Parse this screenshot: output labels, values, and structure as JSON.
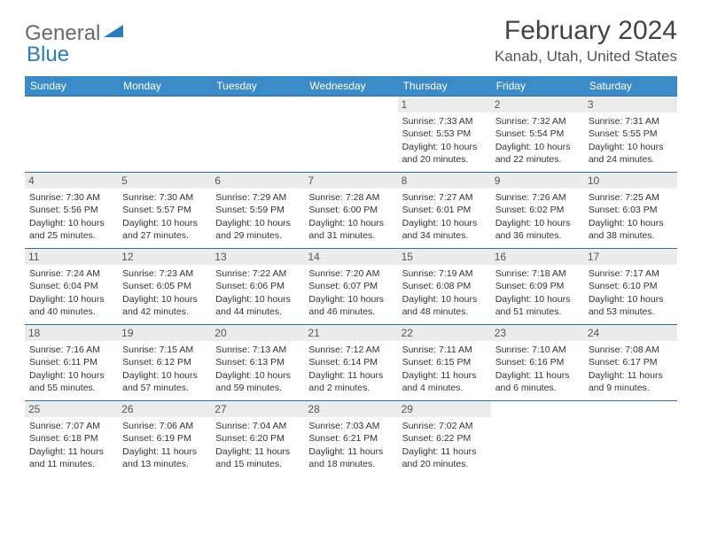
{
  "logo": {
    "general": "General",
    "blue": "Blue"
  },
  "title": "February 2024",
  "location": "Kanab, Utah, United States",
  "colors": {
    "header_bg": "#3b8bc8",
    "header_text": "#ffffff",
    "day_bg": "#ececec",
    "border": "#2f6fa3",
    "logo_gray": "#6a6a6a",
    "logo_blue": "#2b7bbf"
  },
  "weekdays": [
    "Sunday",
    "Monday",
    "Tuesday",
    "Wednesday",
    "Thursday",
    "Friday",
    "Saturday"
  ],
  "layout": {
    "columns": 7,
    "rows": 5,
    "first_day_index": 4,
    "days_in_month": 29
  },
  "days": {
    "1": {
      "sunrise": "7:33 AM",
      "sunset": "5:53 PM",
      "daylight": "10 hours and 20 minutes."
    },
    "2": {
      "sunrise": "7:32 AM",
      "sunset": "5:54 PM",
      "daylight": "10 hours and 22 minutes."
    },
    "3": {
      "sunrise": "7:31 AM",
      "sunset": "5:55 PM",
      "daylight": "10 hours and 24 minutes."
    },
    "4": {
      "sunrise": "7:30 AM",
      "sunset": "5:56 PM",
      "daylight": "10 hours and 25 minutes."
    },
    "5": {
      "sunrise": "7:30 AM",
      "sunset": "5:57 PM",
      "daylight": "10 hours and 27 minutes."
    },
    "6": {
      "sunrise": "7:29 AM",
      "sunset": "5:59 PM",
      "daylight": "10 hours and 29 minutes."
    },
    "7": {
      "sunrise": "7:28 AM",
      "sunset": "6:00 PM",
      "daylight": "10 hours and 31 minutes."
    },
    "8": {
      "sunrise": "7:27 AM",
      "sunset": "6:01 PM",
      "daylight": "10 hours and 34 minutes."
    },
    "9": {
      "sunrise": "7:26 AM",
      "sunset": "6:02 PM",
      "daylight": "10 hours and 36 minutes."
    },
    "10": {
      "sunrise": "7:25 AM",
      "sunset": "6:03 PM",
      "daylight": "10 hours and 38 minutes."
    },
    "11": {
      "sunrise": "7:24 AM",
      "sunset": "6:04 PM",
      "daylight": "10 hours and 40 minutes."
    },
    "12": {
      "sunrise": "7:23 AM",
      "sunset": "6:05 PM",
      "daylight": "10 hours and 42 minutes."
    },
    "13": {
      "sunrise": "7:22 AM",
      "sunset": "6:06 PM",
      "daylight": "10 hours and 44 minutes."
    },
    "14": {
      "sunrise": "7:20 AM",
      "sunset": "6:07 PM",
      "daylight": "10 hours and 46 minutes."
    },
    "15": {
      "sunrise": "7:19 AM",
      "sunset": "6:08 PM",
      "daylight": "10 hours and 48 minutes."
    },
    "16": {
      "sunrise": "7:18 AM",
      "sunset": "6:09 PM",
      "daylight": "10 hours and 51 minutes."
    },
    "17": {
      "sunrise": "7:17 AM",
      "sunset": "6:10 PM",
      "daylight": "10 hours and 53 minutes."
    },
    "18": {
      "sunrise": "7:16 AM",
      "sunset": "6:11 PM",
      "daylight": "10 hours and 55 minutes."
    },
    "19": {
      "sunrise": "7:15 AM",
      "sunset": "6:12 PM",
      "daylight": "10 hours and 57 minutes."
    },
    "20": {
      "sunrise": "7:13 AM",
      "sunset": "6:13 PM",
      "daylight": "10 hours and 59 minutes."
    },
    "21": {
      "sunrise": "7:12 AM",
      "sunset": "6:14 PM",
      "daylight": "11 hours and 2 minutes."
    },
    "22": {
      "sunrise": "7:11 AM",
      "sunset": "6:15 PM",
      "daylight": "11 hours and 4 minutes."
    },
    "23": {
      "sunrise": "7:10 AM",
      "sunset": "6:16 PM",
      "daylight": "11 hours and 6 minutes."
    },
    "24": {
      "sunrise": "7:08 AM",
      "sunset": "6:17 PM",
      "daylight": "11 hours and 9 minutes."
    },
    "25": {
      "sunrise": "7:07 AM",
      "sunset": "6:18 PM",
      "daylight": "11 hours and 11 minutes."
    },
    "26": {
      "sunrise": "7:06 AM",
      "sunset": "6:19 PM",
      "daylight": "11 hours and 13 minutes."
    },
    "27": {
      "sunrise": "7:04 AM",
      "sunset": "6:20 PM",
      "daylight": "11 hours and 15 minutes."
    },
    "28": {
      "sunrise": "7:03 AM",
      "sunset": "6:21 PM",
      "daylight": "11 hours and 18 minutes."
    },
    "29": {
      "sunrise": "7:02 AM",
      "sunset": "6:22 PM",
      "daylight": "11 hours and 20 minutes."
    }
  },
  "labels": {
    "sunrise": "Sunrise: ",
    "sunset": "Sunset: ",
    "daylight": "Daylight: "
  }
}
